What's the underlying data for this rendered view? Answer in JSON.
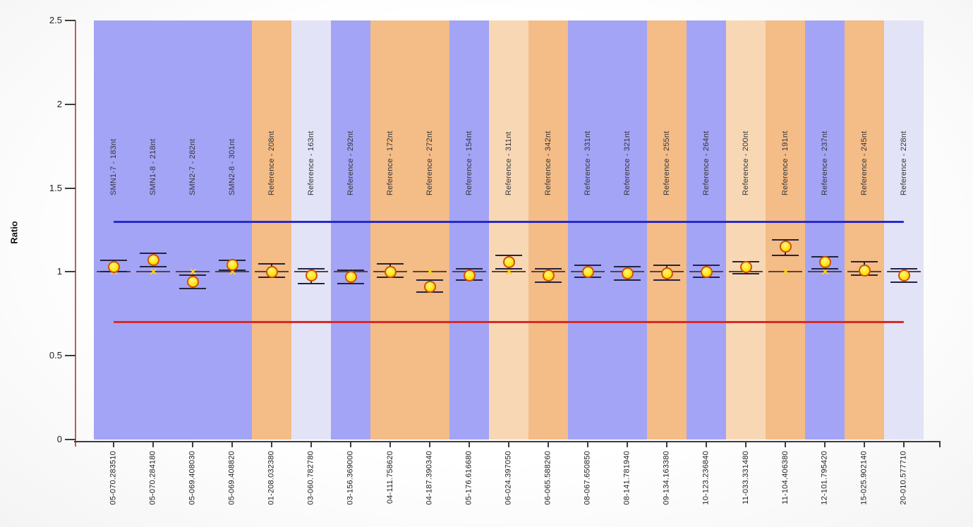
{
  "chart_data": {
    "type": "scatter",
    "title": "",
    "ylabel": "Ratio",
    "xlabel": "",
    "ylim": [
      0,
      2.5
    ],
    "y_ticks": [
      "0",
      "0.5",
      "1",
      "1.5",
      "2",
      "2.5"
    ],
    "y_tick_values": [
      0,
      0.5,
      1,
      1.5,
      2,
      2.5
    ],
    "grid": "off",
    "legend": "none",
    "reference_value": 1.0,
    "thresholds": {
      "upper": 1.3,
      "lower": 0.7,
      "upper_color": "#2a2ac8",
      "lower_color": "#d62b2b"
    },
    "band_colors": {
      "blue": "#a3a4f5",
      "orange": "#f4bc86",
      "lavender": "#e3e3f7",
      "peach": "#f8d8b4"
    },
    "marker_colors": {
      "point_fill": "#ffe712",
      "point_border": "#d2500a",
      "error_bar": "#23233f",
      "reference_line": "#5d4233",
      "x_marker": "#ffd21e"
    },
    "axis_colors": {
      "y_axis": "#c25b5b",
      "x_axis": "#3c3c3c"
    },
    "probes": [
      {
        "probe": "SMN1-7 - 183nt",
        "sample": "05-070.283510",
        "band": "blue",
        "ratio": 1.03,
        "ci_low": 1.0,
        "ci_high": 1.07
      },
      {
        "probe": "SMN1-8 - 218nt",
        "sample": "05-070.284180",
        "band": "blue",
        "ratio": 1.07,
        "ci_low": 1.03,
        "ci_high": 1.11
      },
      {
        "probe": "SMN2-7 - 282nt",
        "sample": "05-069.408030",
        "band": "blue",
        "ratio": 0.94,
        "ci_low": 0.9,
        "ci_high": 0.98
      },
      {
        "probe": "SMN2-8 - 301nt",
        "sample": "05-069.408820",
        "band": "blue",
        "ratio": 1.04,
        "ci_low": 1.01,
        "ci_high": 1.07
      },
      {
        "probe": "Reference - 208nt",
        "sample": "01-208.032380",
        "band": "orange",
        "ratio": 1.0,
        "ci_low": 0.97,
        "ci_high": 1.05
      },
      {
        "probe": "Reference - 163nt",
        "sample": "03-060.782780",
        "band": "lavender",
        "ratio": 0.98,
        "ci_low": 0.93,
        "ci_high": 1.02
      },
      {
        "probe": "Reference - 292nt",
        "sample": "03-156.369000",
        "band": "blue",
        "ratio": 0.97,
        "ci_low": 0.93,
        "ci_high": 1.01
      },
      {
        "probe": "Reference - 172nt",
        "sample": "04-111.758620",
        "band": "orange",
        "ratio": 1.0,
        "ci_low": 0.97,
        "ci_high": 1.05
      },
      {
        "probe": "Reference - 272nt",
        "sample": "04-187.390340",
        "band": "orange",
        "ratio": 0.91,
        "ci_low": 0.88,
        "ci_high": 0.95
      },
      {
        "probe": "Reference - 154nt",
        "sample": "05-176.616680",
        "band": "blue",
        "ratio": 0.98,
        "ci_low": 0.95,
        "ci_high": 1.02
      },
      {
        "probe": "Reference - 311nt",
        "sample": "06-024.397050",
        "band": "peach",
        "ratio": 1.06,
        "ci_low": 1.02,
        "ci_high": 1.1
      },
      {
        "probe": "Reference - 342nt",
        "sample": "06-065.588260",
        "band": "orange",
        "ratio": 0.98,
        "ci_low": 0.94,
        "ci_high": 1.02
      },
      {
        "probe": "Reference - 331nt",
        "sample": "08-067.650850",
        "band": "blue",
        "ratio": 1.0,
        "ci_low": 0.97,
        "ci_high": 1.04
      },
      {
        "probe": "Reference - 321nt",
        "sample": "08-141.781940",
        "band": "blue",
        "ratio": 0.99,
        "ci_low": 0.95,
        "ci_high": 1.03
      },
      {
        "probe": "Reference - 255nt",
        "sample": "09-134.163380",
        "band": "orange",
        "ratio": 0.99,
        "ci_low": 0.95,
        "ci_high": 1.04
      },
      {
        "probe": "Reference - 264nt",
        "sample": "10-123.236840",
        "band": "blue",
        "ratio": 1.0,
        "ci_low": 0.97,
        "ci_high": 1.04
      },
      {
        "probe": "Reference - 200nt",
        "sample": "11-033.331480",
        "band": "peach",
        "ratio": 1.03,
        "ci_low": 0.99,
        "ci_high": 1.06
      },
      {
        "probe": "Reference - 191nt",
        "sample": "11-104.406380",
        "band": "orange",
        "ratio": 1.15,
        "ci_low": 1.1,
        "ci_high": 1.19
      },
      {
        "probe": "Reference - 237nt",
        "sample": "12-101.795420",
        "band": "blue",
        "ratio": 1.06,
        "ci_low": 1.02,
        "ci_high": 1.09
      },
      {
        "probe": "Reference - 245nt",
        "sample": "15-025.902140",
        "band": "orange",
        "ratio": 1.01,
        "ci_low": 0.98,
        "ci_high": 1.06
      },
      {
        "probe": "Reference - 228nt",
        "sample": "20-010.577710",
        "band": "lavender",
        "ratio": 0.98,
        "ci_low": 0.94,
        "ci_high": 1.02
      }
    ]
  }
}
